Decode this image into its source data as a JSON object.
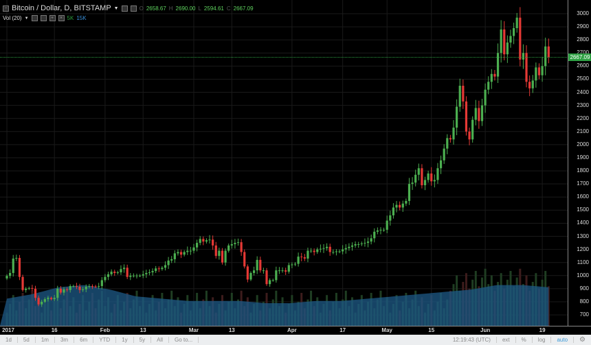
{
  "legend": {
    "symbol": "Bitcoin / Dollar, D, BITSTAMP",
    "o_label": "O",
    "o": "2658.67",
    "h_label": "H",
    "h": "2690.00",
    "l_label": "L",
    "l": "2594.61",
    "c_label": "C",
    "c": "2667.09"
  },
  "volume_legend": {
    "label": "Vol (20)",
    "v1": "5K",
    "v2": "15K"
  },
  "current_price": "2667.09",
  "colors": {
    "up": "#4caf50",
    "down": "#e53935",
    "volume_area": "#1e5a87",
    "current_line": "#2ea043",
    "background": "#000000"
  },
  "toolbar": {
    "ranges": [
      "1d",
      "5d",
      "1m",
      "3m",
      "6m",
      "YTD",
      "1y",
      "5y",
      "All",
      "Go to..."
    ],
    "time": "12:19:43 (UTC)",
    "ext": "ext",
    "percent": "%",
    "log": "log",
    "auto": "auto",
    "settings_icon": "gear-icon"
  },
  "chart_data": {
    "type": "candlestick",
    "start_date": "2017-01-01",
    "interval": "1D",
    "ylim": [
      650,
      3050
    ],
    "y_ticks": [
      3000,
      2900,
      2800,
      2700,
      2600,
      2500,
      2400,
      2300,
      2200,
      2100,
      2000,
      1900,
      1800,
      1700,
      1600,
      1500,
      1400,
      1300,
      1200,
      1100,
      1000,
      900,
      800,
      700
    ],
    "x_ticks": [
      {
        "label": "2017",
        "day": 0
      },
      {
        "label": "16",
        "day": 15
      },
      {
        "label": "Feb",
        "day": 31
      },
      {
        "label": "13",
        "day": 43
      },
      {
        "label": "Mar",
        "day": 59
      },
      {
        "label": "13",
        "day": 71
      },
      {
        "label": "Apr",
        "day": 90
      },
      {
        "label": "17",
        "day": 106
      },
      {
        "label": "May",
        "day": 120
      },
      {
        "label": "15",
        "day": 134
      },
      {
        "label": "Jun",
        "day": 151
      },
      {
        "label": "19",
        "day": 169
      }
    ],
    "close": [
      998,
      1020,
      1130,
      1135,
      990,
      890,
      900,
      905,
      900,
      830,
      780,
      800,
      820,
      830,
      820,
      830,
      900,
      870,
      895,
      890,
      920,
      920,
      915,
      890,
      895,
      915,
      920,
      918,
      915,
      920,
      965,
      990,
      1010,
      1030,
      1020,
      1025,
      1050,
      1060,
      990,
      1000,
      1000,
      1000,
      1000,
      1010,
      1020,
      1025,
      1035,
      1055,
      1050,
      1060,
      1080,
      1115,
      1125,
      1170,
      1180,
      1160,
      1180,
      1190,
      1190,
      1215,
      1250,
      1280,
      1260,
      1270,
      1275,
      1230,
      1150,
      1190,
      1100,
      1190,
      1230,
      1240,
      1250,
      1255,
      1180,
      1070,
      970,
      1020,
      1040,
      1120,
      1040,
      1040,
      935,
      965,
      965,
      1040,
      1040,
      1040,
      1030,
      1080,
      1085,
      1090,
      1145,
      1140,
      1130,
      1190,
      1190,
      1180,
      1200,
      1205,
      1210,
      1220,
      1180,
      1180,
      1185,
      1185,
      1200,
      1210,
      1220,
      1230,
      1240,
      1240,
      1245,
      1250,
      1260,
      1285,
      1335,
      1345,
      1350,
      1350,
      1420,
      1460,
      1520,
      1540,
      1520,
      1550,
      1570,
      1700,
      1710,
      1770,
      1820,
      1690,
      1730,
      1780,
      1720,
      1730,
      1820,
      1880,
      1970,
      2050,
      2040,
      2130,
      2290,
      2450,
      2330,
      2100,
      2040,
      2190,
      2280,
      2180,
      2300,
      2420,
      2480,
      2540,
      2520,
      2700,
      2880,
      2690,
      2780,
      2830,
      2890,
      2970,
      2650,
      2700,
      2480,
      2430,
      2490,
      2590,
      2530,
      2600,
      2750,
      2667
    ],
    "volume_ma": [
      12,
      14,
      17,
      18,
      16,
      13,
      12,
      11,
      11,
      11,
      10,
      10,
      11,
      11,
      12,
      13,
      14,
      15,
      16,
      18,
      18,
      17
    ]
  }
}
